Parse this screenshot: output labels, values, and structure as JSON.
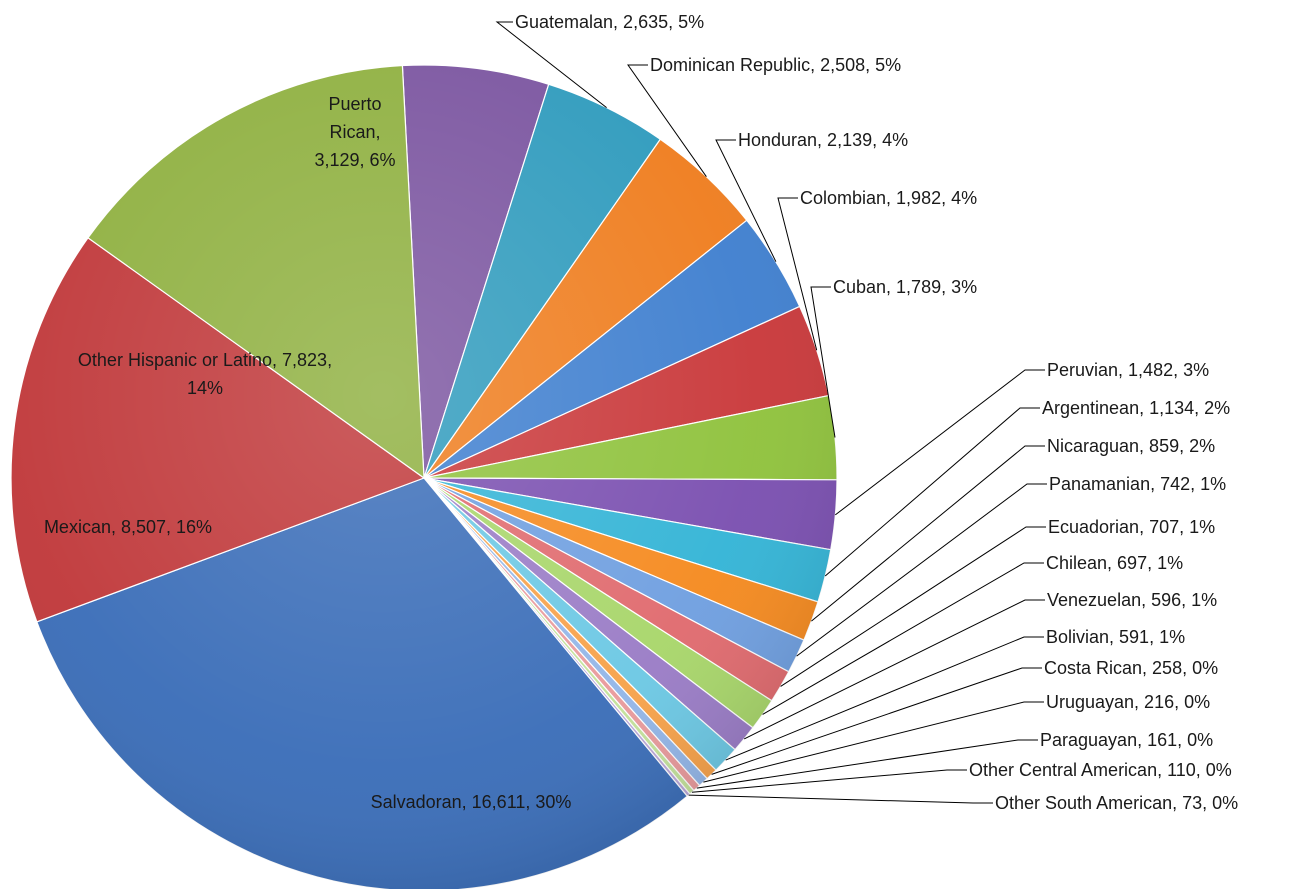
{
  "chart_data": {
    "type": "pie",
    "title": "",
    "label_format": "{name}, {value}, {percent}",
    "slices": [
      {
        "name": "Puerto Rican",
        "value": 3129,
        "percent": "6%",
        "display": "Puerto Rican, 3,129, 6%",
        "color": "#7b55a0"
      },
      {
        "name": "Guatemalan",
        "value": 2635,
        "percent": "5%",
        "display": "Guatemalan, 2,635, 5%",
        "color": "#2f9bbd"
      },
      {
        "name": "Dominican Republic",
        "value": 2508,
        "percent": "5%",
        "display": "Dominican Republic, 2,508, 5%",
        "color": "#ef7d1e"
      },
      {
        "name": "Honduran",
        "value": 2139,
        "percent": "4%",
        "display": "Honduran, 2,139, 4%",
        "color": "#3f7fcf"
      },
      {
        "name": "Colombian",
        "value": 1982,
        "percent": "4%",
        "display": "Colombian, 1,982, 4%",
        "color": "#c9383a"
      },
      {
        "name": "Cuban",
        "value": 1789,
        "percent": "3%",
        "display": "Cuban, 1,789, 3%",
        "color": "#8fc23c"
      },
      {
        "name": "Peruvian",
        "value": 1482,
        "percent": "3%",
        "display": "Peruvian, 1,482, 3%",
        "color": "#7a4fb0"
      },
      {
        "name": "Argentinean",
        "value": 1134,
        "percent": "2%",
        "display": "Argentinean, 1,134, 2%",
        "color": "#33b4d6"
      },
      {
        "name": "Nicaraguan",
        "value": 859,
        "percent": "2%",
        "display": "Nicaraguan, 859, 2%",
        "color": "#f58a1f"
      },
      {
        "name": "Panamanian",
        "value": 742,
        "percent": "1%",
        "display": "Panamanian, 742, 1%",
        "color": "#6f9fe0"
      },
      {
        "name": "Ecuadorian",
        "value": 707,
        "percent": "1%",
        "display": "Ecuadorian, 707, 1%",
        "color": "#e06a6e"
      },
      {
        "name": "Chilean",
        "value": 697,
        "percent": "1%",
        "display": "Chilean, 697, 1%",
        "color": "#a8d66a"
      },
      {
        "name": "Venezuelan",
        "value": 596,
        "percent": "1%",
        "display": "Venezuelan, 596, 1%",
        "color": "#9a7cc6"
      },
      {
        "name": "Bolivian",
        "value": 591,
        "percent": "1%",
        "display": "Bolivian, 591, 1%",
        "color": "#6cc8e4"
      },
      {
        "name": "Costa Rican",
        "value": 258,
        "percent": "0%",
        "display": "Costa Rican, 258, 0%",
        "color": "#f7a24a"
      },
      {
        "name": "Uruguayan",
        "value": 216,
        "percent": "0%",
        "display": "Uruguayan, 216, 0%",
        "color": "#93b6e8"
      },
      {
        "name": "Paraguayan",
        "value": 161,
        "percent": "0%",
        "display": "Paraguayan, 161, 0%",
        "color": "#e99a9c"
      },
      {
        "name": "Other Central American",
        "value": 110,
        "percent": "0%",
        "display": "Other Central American, 110, 0%",
        "color": "#c4e29b"
      },
      {
        "name": "Other South American",
        "value": 73,
        "percent": "0%",
        "display": "Other South American, 73, 0%",
        "color": "#b9a6d8"
      },
      {
        "name": "Salvadoran",
        "value": 16611,
        "percent": "30%",
        "display": "Salvadoran, 16,611, 30%",
        "color": "#3a6db8"
      },
      {
        "name": "Mexican",
        "value": 8507,
        "percent": "16%",
        "display": "Mexican, 8,507, 16%",
        "color": "#c0383a"
      },
      {
        "name": "Other Hispanic or Latino",
        "value": 7823,
        "percent": "14%",
        "display": "Other Hispanic or Latino, 7,823, 14%",
        "color": "#8fb040"
      }
    ],
    "inside_labels": {
      "Puerto Rican": [
        "Puerto",
        "Rican,",
        "3,129, 6%"
      ],
      "Other Hispanic or Latino": [
        "Other Hispanic or Latino, 7,823,",
        "14%"
      ],
      "Mexican": [
        "Mexican, 8,507, 16%"
      ],
      "Salvadoran": [
        "Salvadoran, 16,611, 30%"
      ]
    }
  }
}
